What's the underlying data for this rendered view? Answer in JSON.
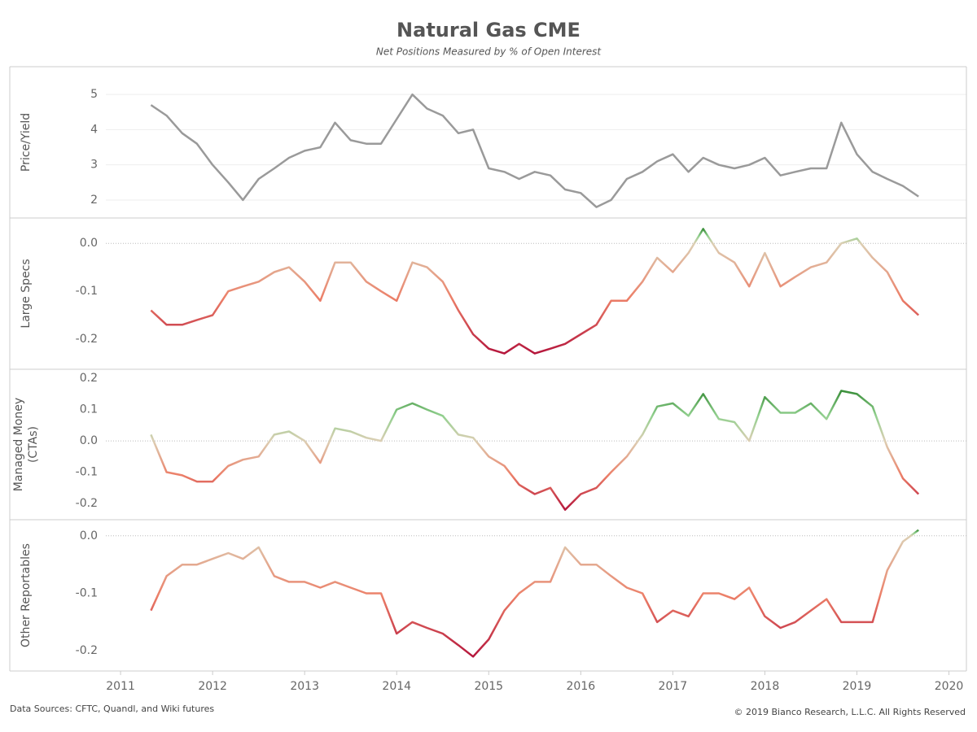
{
  "title": "Natural Gas CME",
  "subtitle": "Net Positions Measured by % of Open Interest",
  "source": "Data Sources: CFTC, Quandl, and Wiki futures",
  "copyright": "© 2019 Bianco Research, L.L.C. All Rights Reserved",
  "chart_data": {
    "type": "line",
    "x": [
      2011.33,
      2011.5,
      2011.67,
      2011.83,
      2012,
      2012.17,
      2012.33,
      2012.5,
      2012.67,
      2012.83,
      2013,
      2013.17,
      2013.33,
      2013.5,
      2013.67,
      2013.83,
      2014,
      2014.17,
      2014.33,
      2014.5,
      2014.67,
      2014.83,
      2015,
      2015.17,
      2015.33,
      2015.5,
      2015.67,
      2015.83,
      2016,
      2016.17,
      2016.33,
      2016.5,
      2016.67,
      2016.83,
      2017,
      2017.17,
      2017.33,
      2017.5,
      2017.67,
      2017.83,
      2018,
      2018.17,
      2018.33,
      2018.5,
      2018.67,
      2018.83,
      2019,
      2019.17,
      2019.33,
      2019.5,
      2019.67
    ],
    "xlim": [
      2010.84,
      2020.19
    ],
    "xticks": [
      2011,
      2012,
      2013,
      2014,
      2015,
      2016,
      2017,
      2018,
      2019,
      2020
    ],
    "color_scale": [
      "#b5163c",
      "#ec7f68",
      "#dccfb4",
      "#92d08f",
      "#3a8f3a"
    ],
    "panels": [
      {
        "ylabel": "Price/Yield",
        "color": "#9a9a9a",
        "grid": true,
        "ylim": [
          1.49,
          5.79
        ],
        "yticks": [
          2,
          3,
          4,
          5
        ],
        "values": [
          4.7,
          4.4,
          3.9,
          3.6,
          3.0,
          2.5,
          2.0,
          2.6,
          2.9,
          3.2,
          3.4,
          3.5,
          4.2,
          3.7,
          3.6,
          3.6,
          4.3,
          5.0,
          4.6,
          4.4,
          3.9,
          4.0,
          2.9,
          2.8,
          2.6,
          2.8,
          2.7,
          2.3,
          2.2,
          1.8,
          2.0,
          2.6,
          2.8,
          3.1,
          3.3,
          2.8,
          3.2,
          3.0,
          2.9,
          3.0,
          3.2,
          2.7,
          2.8,
          2.9,
          2.9,
          4.2,
          3.3,
          2.8,
          2.6,
          2.4,
          2.1
        ]
      },
      {
        "ylabel": "Large Specs",
        "zero_line": true,
        "ylim": [
          -0.263,
          0.053
        ],
        "yticks": [
          {
            "value": 0,
            "label": "0.0"
          },
          -0.1,
          -0.2
        ],
        "values": [
          -0.14,
          -0.17,
          -0.17,
          -0.16,
          -0.15,
          -0.1,
          -0.09,
          -0.08,
          -0.06,
          -0.05,
          -0.08,
          -0.12,
          -0.04,
          -0.04,
          -0.08,
          -0.1,
          -0.12,
          -0.04,
          -0.05,
          -0.08,
          -0.14,
          -0.19,
          -0.22,
          -0.23,
          -0.21,
          -0.23,
          -0.22,
          -0.21,
          -0.19,
          -0.17,
          -0.12,
          -0.12,
          -0.08,
          -0.03,
          -0.06,
          -0.02,
          0.03,
          -0.02,
          -0.04,
          -0.09,
          -0.02,
          -0.09,
          -0.07,
          -0.05,
          -0.04,
          0.0,
          0.01,
          -0.03,
          -0.06,
          -0.12,
          -0.15
        ]
      },
      {
        "ylabel": [
          "Managed Money",
          "(CTAs)"
        ],
        "zero_line": true,
        "ylim": [
          -0.252,
          0.229
        ],
        "yticks": [
          0.2,
          0.1,
          {
            "value": 0,
            "label": "0.0"
          },
          -0.1,
          -0.2
        ],
        "values": [
          0.02,
          -0.1,
          -0.11,
          -0.13,
          -0.13,
          -0.08,
          -0.06,
          -0.05,
          0.02,
          0.03,
          0.0,
          -0.07,
          0.04,
          0.03,
          0.01,
          0.0,
          0.1,
          0.12,
          0.1,
          0.08,
          0.02,
          0.01,
          -0.05,
          -0.08,
          -0.14,
          -0.17,
          -0.15,
          -0.22,
          -0.17,
          -0.15,
          -0.1,
          -0.05,
          0.02,
          0.11,
          0.12,
          0.08,
          0.15,
          0.07,
          0.06,
          0.0,
          0.14,
          0.09,
          0.09,
          0.12,
          0.07,
          0.16,
          0.15,
          0.11,
          -0.02,
          -0.12,
          -0.17
        ]
      },
      {
        "ylabel": "Other Reportables",
        "zero_line": true,
        "ylim": [
          -0.235,
          0.028
        ],
        "yticks": [
          {
            "value": 0,
            "label": "0.0"
          },
          -0.1,
          -0.2
        ],
        "values": [
          -0.13,
          -0.07,
          -0.05,
          -0.05,
          -0.04,
          -0.03,
          -0.04,
          -0.02,
          -0.07,
          -0.08,
          -0.08,
          -0.09,
          -0.08,
          -0.09,
          -0.1,
          -0.1,
          -0.17,
          -0.15,
          -0.16,
          -0.17,
          -0.19,
          -0.21,
          -0.18,
          -0.13,
          -0.1,
          -0.08,
          -0.08,
          -0.02,
          -0.05,
          -0.05,
          -0.07,
          -0.09,
          -0.1,
          -0.15,
          -0.13,
          -0.14,
          -0.1,
          -0.1,
          -0.11,
          -0.09,
          -0.14,
          -0.16,
          -0.15,
          -0.13,
          -0.11,
          -0.15,
          -0.15,
          -0.15,
          -0.06,
          -0.01,
          0.01
        ]
      }
    ]
  }
}
